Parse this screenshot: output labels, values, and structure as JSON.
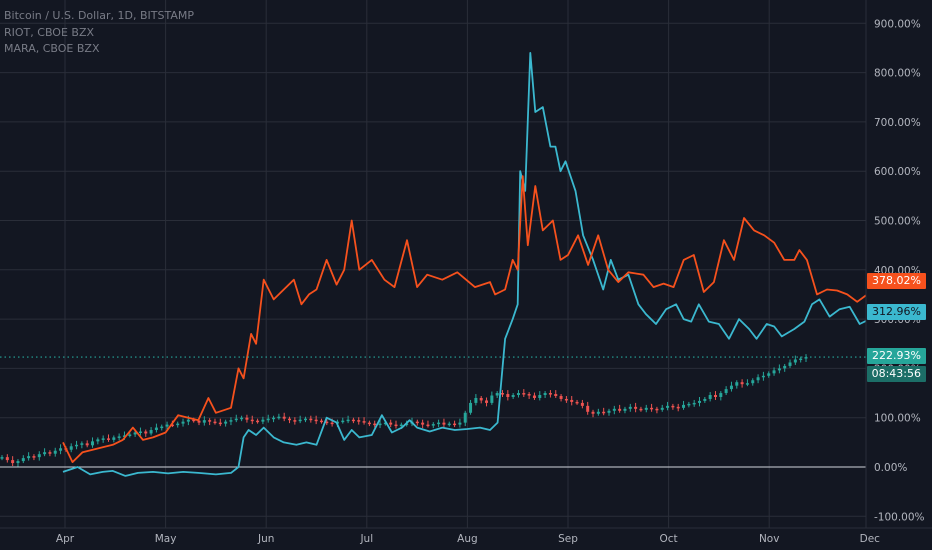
{
  "legend": [
    "Bitcoin / U.S. Dollar, 1D, BITSTAMP",
    "RIOT, CBOE BZX",
    "MARA, CBOE BZX"
  ],
  "price_tags": {
    "mara": "378.02%",
    "riot": "312.96%",
    "btc": "222.93%",
    "countdown": "08:43:56"
  },
  "colors": {
    "background": "#131722",
    "grid": "#2a2e39",
    "mara": "#f6511d",
    "riot": "#3bb8cf",
    "btc_up": "#26a69a",
    "btc_down": "#ef5350",
    "axis_text": "#b2b5be",
    "zero_line": "#d1d4dc"
  },
  "chart_data": {
    "type": "line",
    "x_ticks": [
      "Apr",
      "May",
      "Jun",
      "Jul",
      "Aug",
      "Sep",
      "Oct",
      "Nov",
      "Dec"
    ],
    "y_ticks": [
      "-100.00%",
      "0.00%",
      "100.00%",
      "200.00%",
      "300.00%",
      "400.00%",
      "500.00%",
      "600.00%",
      "700.00%",
      "800.00%",
      "900.00%"
    ],
    "ylim": [
      -100,
      900
    ],
    "x_unit": "months since mid-March",
    "series": [
      {
        "name": "MARA, CBOE BZX",
        "color": "#f6511d",
        "points": [
          [
            -0.04,
            50
          ],
          [
            0.15,
            10
          ],
          [
            0.35,
            30
          ],
          [
            0.55,
            35
          ],
          [
            0.75,
            40
          ],
          [
            0.95,
            45
          ],
          [
            1.15,
            55
          ],
          [
            1.35,
            80
          ],
          [
            1.55,
            55
          ],
          [
            1.75,
            60
          ],
          [
            2.0,
            70
          ],
          [
            2.25,
            105
          ],
          [
            2.45,
            100
          ],
          [
            2.65,
            95
          ],
          [
            2.85,
            140
          ],
          [
            3.0,
            110
          ],
          [
            3.3,
            120
          ],
          [
            3.45,
            200
          ],
          [
            3.55,
            180
          ],
          [
            3.7,
            270
          ],
          [
            3.8,
            250
          ],
          [
            3.95,
            380
          ],
          [
            4.15,
            340
          ],
          [
            4.35,
            360
          ],
          [
            4.55,
            380
          ],
          [
            4.7,
            330
          ],
          [
            4.85,
            350
          ],
          [
            5.0,
            360
          ],
          [
            5.2,
            420
          ],
          [
            5.4,
            370
          ],
          [
            5.55,
            400
          ],
          [
            5.7,
            500
          ],
          [
            5.85,
            400
          ],
          [
            6.1,
            420
          ],
          [
            6.35,
            380
          ],
          [
            6.55,
            365
          ],
          [
            6.8,
            460
          ],
          [
            7.0,
            365
          ],
          [
            7.2,
            390
          ],
          [
            7.5,
            380
          ],
          [
            7.8,
            395
          ],
          [
            8.15,
            365
          ],
          [
            8.45,
            375
          ],
          [
            8.55,
            350
          ],
          [
            8.75,
            360
          ],
          [
            8.9,
            420
          ],
          [
            9.0,
            400
          ],
          [
            9.1,
            590
          ],
          [
            9.2,
            450
          ],
          [
            9.35,
            570
          ],
          [
            9.5,
            480
          ],
          [
            9.7,
            500
          ],
          [
            9.85,
            420
          ],
          [
            10.0,
            430
          ],
          [
            10.2,
            470
          ],
          [
            10.4,
            410
          ],
          [
            10.6,
            470
          ],
          [
            10.8,
            400
          ],
          [
            11.0,
            375
          ],
          [
            11.2,
            395
          ],
          [
            11.5,
            390
          ],
          [
            11.7,
            365
          ],
          [
            11.9,
            372
          ],
          [
            12.1,
            365
          ],
          [
            12.3,
            420
          ],
          [
            12.5,
            430
          ],
          [
            12.7,
            355
          ],
          [
            12.9,
            375
          ],
          [
            13.1,
            460
          ],
          [
            13.3,
            420
          ],
          [
            13.5,
            505
          ],
          [
            13.7,
            480
          ],
          [
            13.9,
            470
          ],
          [
            14.1,
            455
          ],
          [
            14.3,
            420
          ],
          [
            14.5,
            420
          ],
          [
            14.6,
            440
          ],
          [
            14.75,
            420
          ],
          [
            14.95,
            350
          ],
          [
            15.15,
            360
          ],
          [
            15.35,
            358
          ],
          [
            15.55,
            350
          ],
          [
            15.75,
            335
          ],
          [
            15.95,
            350
          ],
          [
            16.1,
            330
          ],
          [
            16.3,
            420
          ],
          [
            16.5,
            440
          ],
          [
            16.7,
            335
          ],
          [
            16.9,
            408
          ],
          [
            17.1,
            392
          ],
          [
            17.35,
            380
          ],
          [
            17.6,
            378
          ]
        ]
      },
      {
        "name": "RIOT, CBOE BZX",
        "color": "#3bb8cf",
        "points": [
          [
            -0.04,
            -10
          ],
          [
            0.25,
            0
          ],
          [
            0.5,
            -15
          ],
          [
            0.75,
            -10
          ],
          [
            0.95,
            -8
          ],
          [
            1.2,
            -18
          ],
          [
            1.45,
            -12
          ],
          [
            1.75,
            -10
          ],
          [
            2.05,
            -13
          ],
          [
            2.35,
            -10
          ],
          [
            2.65,
            -12
          ],
          [
            3.0,
            -15
          ],
          [
            3.3,
            -12
          ],
          [
            3.45,
            0
          ],
          [
            3.55,
            60
          ],
          [
            3.65,
            75
          ],
          [
            3.8,
            65
          ],
          [
            3.95,
            80
          ],
          [
            4.15,
            60
          ],
          [
            4.35,
            50
          ],
          [
            4.6,
            45
          ],
          [
            4.8,
            50
          ],
          [
            5.0,
            45
          ],
          [
            5.2,
            100
          ],
          [
            5.4,
            90
          ],
          [
            5.55,
            55
          ],
          [
            5.7,
            75
          ],
          [
            5.85,
            60
          ],
          [
            6.1,
            65
          ],
          [
            6.3,
            105
          ],
          [
            6.5,
            70
          ],
          [
            6.7,
            80
          ],
          [
            6.85,
            95
          ],
          [
            7.0,
            80
          ],
          [
            7.25,
            72
          ],
          [
            7.5,
            80
          ],
          [
            7.75,
            75
          ],
          [
            8.0,
            77
          ],
          [
            8.25,
            80
          ],
          [
            8.45,
            75
          ],
          [
            8.6,
            90
          ],
          [
            8.75,
            260
          ],
          [
            8.9,
            300
          ],
          [
            9.0,
            330
          ],
          [
            9.05,
            600
          ],
          [
            9.15,
            560
          ],
          [
            9.25,
            840
          ],
          [
            9.35,
            720
          ],
          [
            9.5,
            730
          ],
          [
            9.65,
            650
          ],
          [
            9.75,
            650
          ],
          [
            9.85,
            600
          ],
          [
            9.95,
            620
          ],
          [
            10.15,
            560
          ],
          [
            10.3,
            470
          ],
          [
            10.5,
            420
          ],
          [
            10.7,
            360
          ],
          [
            10.85,
            420
          ],
          [
            11.0,
            380
          ],
          [
            11.2,
            390
          ],
          [
            11.4,
            330
          ],
          [
            11.55,
            310
          ],
          [
            11.75,
            290
          ],
          [
            11.95,
            320
          ],
          [
            12.15,
            330
          ],
          [
            12.3,
            300
          ],
          [
            12.45,
            295
          ],
          [
            12.6,
            330
          ],
          [
            12.8,
            295
          ],
          [
            13.0,
            290
          ],
          [
            13.2,
            260
          ],
          [
            13.4,
            300
          ],
          [
            13.6,
            280
          ],
          [
            13.75,
            260
          ],
          [
            13.95,
            290
          ],
          [
            14.1,
            285
          ],
          [
            14.25,
            265
          ],
          [
            14.5,
            280
          ],
          [
            14.7,
            295
          ],
          [
            14.85,
            330
          ],
          [
            15.0,
            340
          ],
          [
            15.2,
            305
          ],
          [
            15.4,
            320
          ],
          [
            15.6,
            325
          ],
          [
            15.8,
            290
          ],
          [
            16.0,
            300
          ],
          [
            16.2,
            360
          ],
          [
            16.4,
            425
          ],
          [
            16.55,
            420
          ],
          [
            16.7,
            310
          ],
          [
            16.9,
            345
          ],
          [
            17.1,
            320
          ],
          [
            17.35,
            315
          ],
          [
            17.6,
            313
          ]
        ]
      },
      {
        "name": "Bitcoin / U.S. Dollar, 1D, BITSTAMP",
        "type": "candlestick",
        "close": [
          20,
          14,
          8,
          12,
          18,
          22,
          20,
          26,
          30,
          27,
          33,
          38,
          35,
          42,
          45,
          48,
          44,
          52,
          56,
          58,
          55,
          60,
          62,
          64,
          66,
          70,
          72,
          68,
          75,
          80,
          82,
          86,
          85,
          88,
          92,
          96,
          94,
          90,
          95,
          92,
          90,
          88,
          92,
          95,
          98,
          100,
          96,
          94,
          92,
          96,
          98,
          100,
          102,
          98,
          95,
          93,
          96,
          98,
          96,
          94,
          92,
          90,
          88,
          92,
          94,
          96,
          95,
          93,
          90,
          88,
          86,
          88,
          90,
          86,
          84,
          86,
          88,
          92,
          90,
          86,
          84,
          87,
          90,
          86,
          88,
          86,
          90,
          110,
          130,
          140,
          135,
          130,
          145,
          150,
          148,
          142,
          146,
          150,
          148,
          145,
          140,
          146,
          150,
          148,
          144,
          138,
          136,
          132,
          130,
          124,
          112,
          108,
          112,
          110,
          114,
          118,
          114,
          118,
          122,
          118,
          116,
          120,
          118,
          116,
          120,
          124,
          122,
          120,
          126,
          128,
          130,
          134,
          138,
          146,
          142,
          150,
          158,
          165,
          172,
          168,
          170,
          176,
          182,
          185,
          190,
          196,
          200,
          205,
          212,
          218,
          220,
          223
        ],
        "note": "values are percent change from first bar, one bar per day"
      }
    ]
  }
}
